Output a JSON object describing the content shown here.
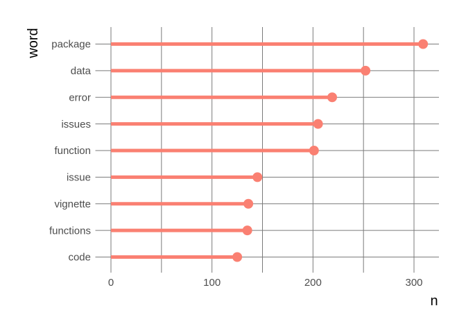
{
  "chart_data": {
    "type": "bar",
    "style": "lollipop",
    "orientation": "horizontal",
    "title": "",
    "xlabel": "n",
    "ylabel": "word",
    "categories": [
      "package",
      "data",
      "error",
      "issues",
      "function",
      "issue",
      "vignette",
      "functions",
      "code"
    ],
    "values": [
      309,
      252,
      219,
      205,
      201,
      145,
      136,
      135,
      125
    ],
    "x_ticks": [
      0,
      100,
      200,
      300
    ],
    "x_minor_ticks": [
      50,
      150,
      250
    ],
    "xlim": [
      0,
      325
    ],
    "grid": "on",
    "legend": "none",
    "colors": {
      "lollipop": "#fa8072",
      "grid": "#7a7a7a",
      "tick_label": "#4d4d4d",
      "axis_title": "#000000",
      "background": "#ffffff"
    }
  }
}
